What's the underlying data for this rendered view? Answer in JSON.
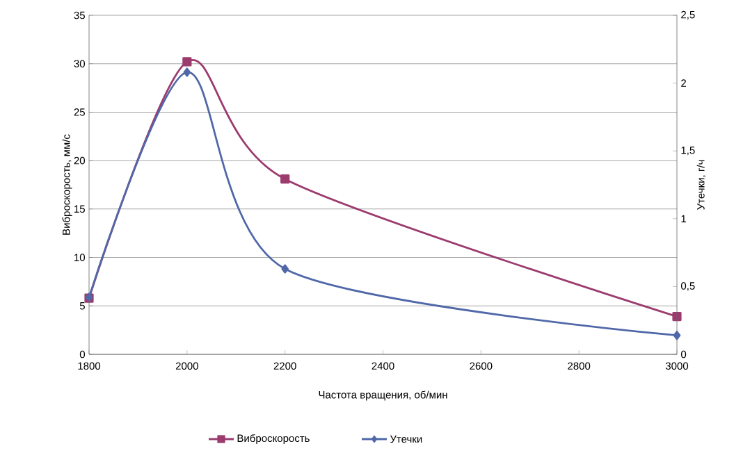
{
  "chart_data": {
    "type": "line",
    "xlabel": "Частота вращения, об/мин",
    "ylabel": "Виброскорость, мм/с",
    "y2label": "Утечки, г/ч",
    "xlim": [
      1800,
      3000
    ],
    "xticks": [
      1800,
      2000,
      2200,
      2400,
      2600,
      2800,
      3000
    ],
    "ylim": [
      0,
      35
    ],
    "yticks": [
      0,
      5,
      10,
      15,
      20,
      25,
      30,
      35
    ],
    "y2lim": [
      0,
      2.5
    ],
    "y2ticks": [
      0,
      {
        "value": 0.5,
        "label": "0,5"
      },
      1,
      {
        "value": 1.5,
        "label": "1,5"
      },
      2,
      {
        "value": 2.5,
        "label": "2,5"
      }
    ],
    "grid": "y",
    "legend": "bottom",
    "line_style": "solid",
    "series": [
      {
        "name": "Виброскорость",
        "color": "#9b3b6e",
        "marker": "square",
        "x": [
          1800,
          2000,
          2200,
          3000
        ],
        "values": [
          5.8,
          30.2,
          18.1,
          3.9
        ]
      },
      {
        "name": "Утечки",
        "color": "#5068a8",
        "marker": "diamond",
        "axis": "y2",
        "x": [
          1800,
          2000,
          2200,
          3000
        ],
        "values": [
          0.42,
          2.08,
          0.63,
          0.14
        ]
      }
    ]
  }
}
